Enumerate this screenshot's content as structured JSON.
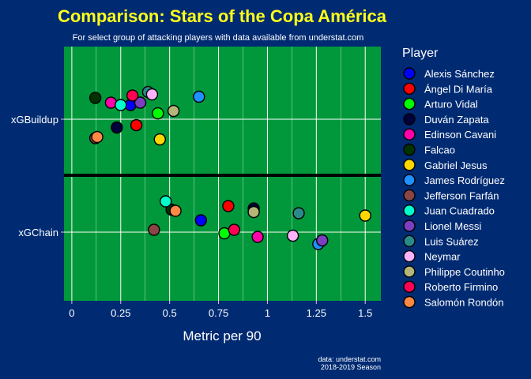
{
  "chart_data": {
    "type": "scatter",
    "title": "Comparison: Stars of the Copa América",
    "subtitle": "For select group of attacking players with data available from understat.com",
    "xlabel": "Metric per 90",
    "ylabel": "",
    "xlim": [
      -0.04,
      1.58
    ],
    "x_ticks": [
      0,
      0.25,
      0.5,
      0.75,
      1,
      1.25,
      1.5
    ],
    "x_tick_labels": [
      "0",
      "0.25",
      "0.5",
      "0.75",
      "1",
      "1.25",
      "1.5"
    ],
    "categories": [
      "xGBuildup",
      "xGChain"
    ],
    "grid": true,
    "legend_title": "Player",
    "legend_position": "right",
    "caption": [
      "data: understat.com",
      "2018-2019 Season"
    ],
    "series": [
      {
        "name": "Alexis Sánchez",
        "color": "#0000ff",
        "points": [
          {
            "metric": "xGBuildup",
            "x": 0.3,
            "jitter": 0.12
          },
          {
            "metric": "xGChain",
            "x": 0.66,
            "jitter": 0.1
          }
        ]
      },
      {
        "name": "Ángel Di María",
        "color": "#ff0000",
        "points": [
          {
            "metric": "xGBuildup",
            "x": 0.33,
            "jitter": -0.05
          },
          {
            "metric": "xGChain",
            "x": 0.8,
            "jitter": 0.22
          }
        ]
      },
      {
        "name": "Arturo Vidal",
        "color": "#00ff00",
        "points": [
          {
            "metric": "xGBuildup",
            "x": 0.44,
            "jitter": 0.05
          },
          {
            "metric": "xGChain",
            "x": 0.78,
            "jitter": -0.01
          }
        ]
      },
      {
        "name": "Duván Zapata",
        "color": "#00003a",
        "points": [
          {
            "metric": "xGBuildup",
            "x": 0.23,
            "jitter": -0.07
          },
          {
            "metric": "xGChain",
            "x": 0.93,
            "jitter": 0.2
          }
        ]
      },
      {
        "name": "Edinson Cavani",
        "color": "#ff00aa",
        "points": [
          {
            "metric": "xGBuildup",
            "x": 0.2,
            "jitter": 0.14
          },
          {
            "metric": "xGChain",
            "x": 0.95,
            "jitter": -0.04
          }
        ]
      },
      {
        "name": "Falcao",
        "color": "#003300",
        "points": [
          {
            "metric": "xGBuildup",
            "x": 0.12,
            "jitter": 0.18
          },
          {
            "metric": "xGChain",
            "x": 0.51,
            "jitter": 0.19
          }
        ]
      },
      {
        "name": "Gabriel Jesus",
        "color": "#ffd700",
        "points": [
          {
            "metric": "xGBuildup",
            "x": 0.45,
            "jitter": -0.17
          },
          {
            "metric": "xGChain",
            "x": 1.5,
            "jitter": 0.14
          }
        ]
      },
      {
        "name": "James Rodríguez",
        "color": "#1e90ff",
        "points": [
          {
            "metric": "xGBuildup",
            "x": 0.65,
            "jitter": 0.19
          },
          {
            "metric": "xGChain",
            "x": 1.26,
            "jitter": -0.1
          }
        ]
      },
      {
        "name": "Jefferson Farfán",
        "color": "#8b4545",
        "points": [
          {
            "metric": "xGBuildup",
            "x": 0.12,
            "jitter": -0.16
          },
          {
            "metric": "xGChain",
            "x": 0.42,
            "jitter": 0.02
          }
        ]
      },
      {
        "name": "Juan Cuadrado",
        "color": "#00ffcc",
        "points": [
          {
            "metric": "xGBuildup",
            "x": 0.25,
            "jitter": 0.12
          },
          {
            "metric": "xGChain",
            "x": 0.48,
            "jitter": 0.26
          }
        ]
      },
      {
        "name": "Lionel Messi",
        "color": "#7b3fbf",
        "points": [
          {
            "metric": "xGBuildup",
            "x": 0.35,
            "jitter": 0.14
          },
          {
            "metric": "xGChain",
            "x": 1.28,
            "jitter": -0.07
          }
        ]
      },
      {
        "name": "Luis Suárez",
        "color": "#2a8a8a",
        "points": [
          {
            "metric": "xGBuildup",
            "x": 0.39,
            "jitter": 0.23
          },
          {
            "metric": "xGChain",
            "x": 1.16,
            "jitter": 0.16
          }
        ]
      },
      {
        "name": "Neymar",
        "color": "#ffb3ff",
        "points": [
          {
            "metric": "xGBuildup",
            "x": 0.41,
            "jitter": 0.21
          },
          {
            "metric": "xGChain",
            "x": 1.13,
            "jitter": -0.03
          }
        ]
      },
      {
        "name": "Philippe Coutinho",
        "color": "#b5b57a",
        "points": [
          {
            "metric": "xGBuildup",
            "x": 0.52,
            "jitter": 0.07
          },
          {
            "metric": "xGChain",
            "x": 0.93,
            "jitter": 0.17
          }
        ]
      },
      {
        "name": "Roberto Firmino",
        "color": "#ff0055",
        "points": [
          {
            "metric": "xGBuildup",
            "x": 0.31,
            "jitter": 0.2
          },
          {
            "metric": "xGChain",
            "x": 0.83,
            "jitter": 0.02
          }
        ]
      },
      {
        "name": "Salomón Rondón",
        "color": "#ff8844",
        "points": [
          {
            "metric": "xGBuildup",
            "x": 0.13,
            "jitter": -0.15
          },
          {
            "metric": "xGChain",
            "x": 0.53,
            "jitter": 0.18
          }
        ]
      }
    ]
  }
}
